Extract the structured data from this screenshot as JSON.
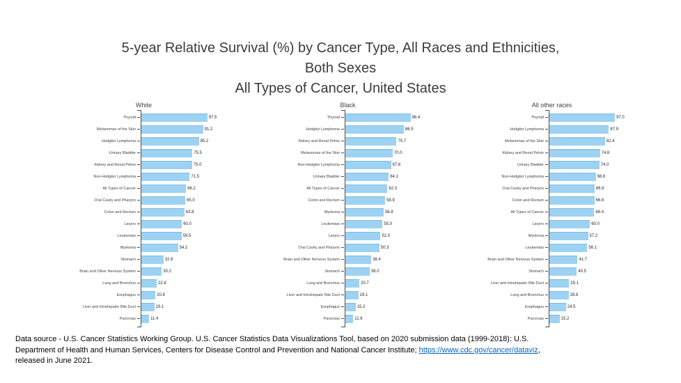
{
  "title": {
    "line1": "5-year Relative Survival (%) by Cancer Type, All Races and Ethnicities,",
    "line2": "Both Sexes",
    "line3": "All Types of Cancer, United States"
  },
  "chart_data": {
    "type": "bar",
    "orientation": "horizontal",
    "title": "5-year Relative Survival (%) by Cancer Type, All Races and Ethnicities, Both Sexes",
    "subtitle": "All Types of Cancer, United States",
    "value_unit": "%",
    "xlim": [
      0,
      100
    ],
    "grid": false,
    "legend": false,
    "panels": [
      {
        "title": "White",
        "categories": [
          "Thyroid",
          "Melanomas of the Skin",
          "Hodgkin Lymphoma",
          "Urinary Bladder",
          "Kidney and Renal Pelvis",
          "Non-Hodgkin Lymphoma",
          "All Types of Cancer",
          "Oral Cavity and Pharynx",
          "Colon and Rectum",
          "Larynx",
          "Leukemias",
          "Myeloma",
          "Stomach",
          "Brain and Other Nervous System",
          "Lung and Bronchus",
          "Esophagus",
          "Liver and Intrahepatic Bile Duct",
          "Pancreas"
        ],
        "values": [
          97.5,
          91.2,
          85.2,
          75.5,
          75.0,
          71.5,
          66.2,
          65.0,
          63.8,
          60.0,
          59.5,
          54.2,
          32.8,
          30.2,
          22.8,
          20.8,
          19.1,
          11.4
        ]
      },
      {
        "title": "Black",
        "categories": [
          "Thyroid",
          "Hodgkin Lymphoma",
          "Kidney and Renal Pelvis",
          "Melanomas of the Skin",
          "Non-Hodgkin Lymphoma",
          "Urinary Bladder",
          "All Types of Cancer",
          "Colon and Rectum",
          "Myeloma",
          "Leukemias",
          "Larynx",
          "Oral Cavity and Pharynx",
          "Brain and Other Nervous System",
          "Stomach",
          "Lung and Bronchus",
          "Liver and Intrahepatic Bile Duct",
          "Esophagus",
          "Pancreas"
        ],
        "values": [
          96.4,
          86.5,
          75.7,
          70.0,
          67.6,
          64.1,
          62.3,
          58.9,
          56.8,
          55.0,
          52.0,
          50.3,
          38.4,
          36.0,
          20.7,
          19.1,
          15.2,
          11.6
        ]
      },
      {
        "title": "All other races",
        "categories": [
          "Thyroid",
          "Hodgkin Lymphoma",
          "Melanomas of the Skin",
          "Kidney and Renal Pelvis",
          "Urinary Bladder",
          "Non-Hodgkin Lymphoma",
          "Oral Cavity and Pharynx",
          "Colon and Rectum",
          "All Types of Cancer",
          "Larynx",
          "Myeloma",
          "Leukemias",
          "Brain and Other Nervous System",
          "Stomach",
          "Liver and Intrahepatic Bile Duct",
          "Lung and Bronchus",
          "Esophagus",
          "Pancreas"
        ],
        "values": [
          97.0,
          87.9,
          82.4,
          74.8,
          74.0,
          68.8,
          66.9,
          66.6,
          66.4,
          60.0,
          57.2,
          56.1,
          41.7,
          40.5,
          29.1,
          28.6,
          24.5,
          15.2
        ]
      }
    ]
  },
  "footer": {
    "line1": "Data source - U.S. Cancer Statistics Working Group. U.S. Cancer Statistics Data Visualizations Tool, based on 2020 submission data (1999-2018): U.S.",
    "line2_before_link": "Department of Health and Human Services, Centers for Disease Control and Prevention and National Cancer Institute; ",
    "line2_link": "https://www.cdc.gov/cancer/dataviz",
    "line2_after_link": ",",
    "line3": "released in June 2021."
  },
  "colors": {
    "bar_fill": "#9DD2F3",
    "bar_border": "#79BCE5",
    "axis": "#4a4a4a",
    "title_text": "#3b3b3b",
    "link": "#0563C1"
  }
}
